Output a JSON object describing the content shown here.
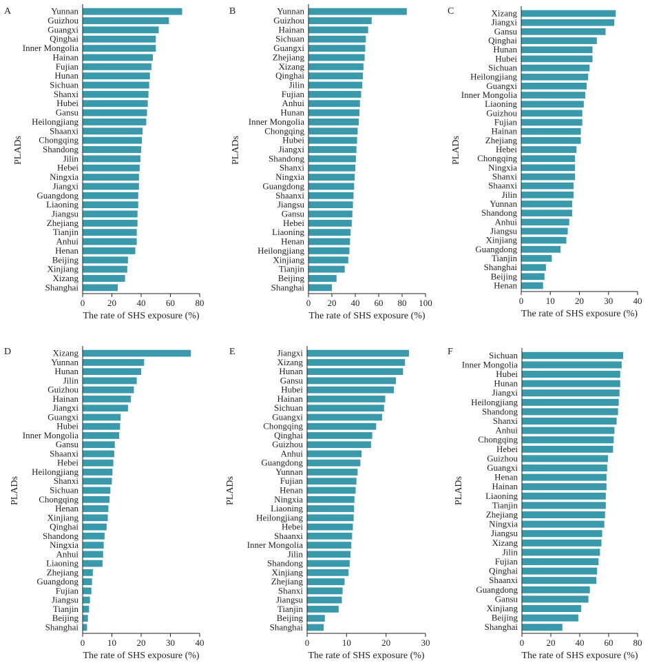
{
  "chart_data": [
    {
      "type": "bar",
      "orientation": "horizontal",
      "panel_label": "A",
      "xlabel": "The rate of SHS exposure (%)",
      "ylabel": "PLADs",
      "xlim": [
        0,
        80
      ],
      "xticks": [
        0,
        20,
        40,
        60,
        80
      ],
      "bar_color": "#3a9aab",
      "categories": [
        "Yunnan",
        "Guizhou",
        "Guangxi",
        "Qinghai",
        "Inner Mongolia",
        "Hainan",
        "Fujian",
        "Hunan",
        "Sichuan",
        "Shanxi",
        "Hubei",
        "Gansu",
        "Heilongjiang",
        "Shaanxi",
        "Chongqing",
        "Shandong",
        "Jilin",
        "Hebei",
        "Ningxia",
        "Jiangxi",
        "Guangdong",
        "Liaoning",
        "Jiangsu",
        "Zhejiang",
        "Tianjin",
        "Anhui",
        "Henan",
        "Beijing",
        "Xinjiang",
        "Xizang",
        "Shanghai"
      ],
      "values": [
        68,
        59,
        52,
        50,
        50,
        48,
        47,
        46,
        45.5,
        45,
        44.5,
        44,
        43.5,
        41,
        40.5,
        40,
        39.5,
        39,
        38.5,
        38.5,
        38,
        38,
        37.5,
        37.5,
        37,
        37,
        36,
        31,
        30.5,
        29,
        24
      ]
    },
    {
      "type": "bar",
      "orientation": "horizontal",
      "panel_label": "B",
      "xlabel": "The rate of SHS exposure (%)",
      "ylabel": "PLADs",
      "xlim": [
        0,
        100
      ],
      "xticks": [
        0,
        20,
        40,
        60,
        80,
        100
      ],
      "bar_color": "#3a9aab",
      "categories": [
        "Yunnan",
        "Guizhou",
        "Hainan",
        "Sichuan",
        "Guangxi",
        "Zhejiang",
        "Xizang",
        "Qinghai",
        "Jilin",
        "Fujian",
        "Anhui",
        "Hunan",
        "Inner Mongolia",
        "Chongqing",
        "Hubei",
        "Jiangxi",
        "Shandong",
        "Shanxi",
        "Ningxia",
        "Guangdong",
        "Shaanxi",
        "Jiangsu",
        "Gansu",
        "Hebei",
        "Liaoning",
        "Henan",
        "Heilongjiang",
        "Xinjiang",
        "Tianjin",
        "Beijing",
        "Shanghai"
      ],
      "values": [
        84,
        54,
        51,
        49,
        48.5,
        48,
        47,
        46.5,
        46,
        45,
        44,
        43.5,
        43,
        42,
        41.5,
        41,
        40.5,
        40,
        39.5,
        39,
        38.5,
        38,
        37.5,
        37,
        36,
        35.5,
        35,
        34,
        31,
        24,
        20
      ]
    },
    {
      "type": "bar",
      "orientation": "horizontal",
      "panel_label": "C",
      "xlabel": "The rate of SHS exposure (%)",
      "ylabel": "PLADs",
      "xlim": [
        0,
        40
      ],
      "xticks": [
        0,
        10,
        20,
        30,
        40
      ],
      "bar_color": "#3a9aab",
      "categories": [
        "Xizang",
        "Jiangxi",
        "Gansu",
        "Qinghai",
        "Hunan",
        "Hubei",
        "Sichuan",
        "Heilongjiang",
        "Guangxi",
        "Inner Mongolia",
        "Liaoning",
        "Guizhou",
        "Fujian",
        "Hainan",
        "Zhejiang",
        "Hebei",
        "Chongqing",
        "Ningxia",
        "Shanxi",
        "Shaanxi",
        "Jilin",
        "Yunnan",
        "Shandong",
        "Anhui",
        "Jiangsu",
        "Xinjiang",
        "Guangdong",
        "Tianjin",
        "Shanghai",
        "Beijing",
        "Henan"
      ],
      "values": [
        32.5,
        32,
        29,
        26,
        24.5,
        24.5,
        23.5,
        23,
        22.5,
        22,
        21.5,
        21,
        21,
        20.5,
        20.5,
        19,
        18.5,
        18.5,
        18.5,
        18,
        18,
        17.5,
        17.5,
        16.5,
        16,
        15.5,
        13.5,
        10.5,
        8.5,
        8,
        7.5
      ]
    },
    {
      "type": "bar",
      "orientation": "horizontal",
      "panel_label": "D",
      "xlabel": "The rate of SHS exposure (%)",
      "ylabel": "PLADs",
      "xlim": [
        0,
        40
      ],
      "xticks": [
        0,
        10,
        20,
        30,
        40
      ],
      "bar_color": "#3a9aab",
      "categories": [
        "Xizang",
        "Yunnan",
        "Hunan",
        "Jilin",
        "Guizhou",
        "Hainan",
        "Jiangxi",
        "Guangxi",
        "Hubei",
        "Inner Mongolia",
        "Gansu",
        "Shaanxi",
        "Hebei",
        "Heilongjiang",
        "Shanxi",
        "Sichuan",
        "Chongqing",
        "Henan",
        "Xinjiang",
        "Qinghai",
        "Shandong",
        "Ningxia",
        "Anhui",
        "Liaoning",
        "Zhejiang",
        "Guangdong",
        "Fujian",
        "Jiangsu",
        "Tianjin",
        "Beijing",
        "Shanghai"
      ],
      "values": [
        37,
        21,
        20,
        18.5,
        17.5,
        16.5,
        15.5,
        13,
        12.8,
        12.5,
        11,
        10.8,
        10.5,
        10.2,
        10,
        9.5,
        9.2,
        8.8,
        8.6,
        8.2,
        7.5,
        7.2,
        7,
        6.8,
        3.5,
        3.2,
        3,
        2.5,
        2.2,
        1.8,
        1.5
      ]
    },
    {
      "type": "bar",
      "orientation": "horizontal",
      "panel_label": "E",
      "xlabel": "The rate of SHS exposure (%)",
      "ylabel": "PLADs",
      "xlim": [
        0,
        30
      ],
      "xticks": [
        0,
        10,
        20,
        30
      ],
      "bar_color": "#3a9aab",
      "categories": [
        "Jiangxi",
        "Xizang",
        "Hunan",
        "Gansu",
        "Hubei",
        "Hainan",
        "Sichuan",
        "Guangxi",
        "Chongqing",
        "Qinghai",
        "Guizhou",
        "Anhui",
        "Guangdong",
        "Yunnan",
        "Fujian",
        "Henan",
        "Ningxia",
        "Liaoning",
        "Heilongjiang",
        "Hebei",
        "Shaanxi",
        "Inner Mongolia",
        "Jilin",
        "Shandong",
        "Xinjiang",
        "Zhejiang",
        "Shanxi",
        "Jiangsu",
        "Tianjin",
        "Beijing",
        "Shanghai"
      ],
      "values": [
        25.8,
        24.8,
        24.3,
        22.5,
        22,
        19.8,
        19.5,
        19,
        17.5,
        16.5,
        16.2,
        13.8,
        13.5,
        12.8,
        12.5,
        12.3,
        12,
        11.9,
        11.8,
        11.6,
        11.4,
        11.2,
        11,
        10.8,
        10.5,
        9.5,
        9,
        8.8,
        8,
        4.5,
        4.2
      ]
    },
    {
      "type": "bar",
      "orientation": "horizontal",
      "panel_label": "F",
      "xlabel": "The rate of SHS exposure (%)",
      "ylabel": "PLADs",
      "xlim": [
        0,
        80
      ],
      "xticks": [
        0,
        20,
        40,
        60,
        80
      ],
      "bar_color": "#3a9aab",
      "categories": [
        "Sichuan",
        "Inner Mongolia",
        "Hubei",
        "Hunan",
        "Jiangxi",
        "Heilongjiang",
        "Shandong",
        "Shanxi",
        "Anhui",
        "Chongqing",
        "Hebei",
        "Guizhou",
        "Guangxi",
        "Henan",
        "Hainan",
        "Liaoning",
        "Tianjin",
        "Zhejiang",
        "Ningxia",
        "Jiangsu",
        "Xizang",
        "Jilin",
        "Fujian",
        "Qinghai",
        "Shaanxi",
        "Guangdong",
        "Gansu",
        "Xinjiang",
        "Beijing",
        "Shanghai"
      ],
      "values": [
        70,
        69,
        68,
        68,
        67.5,
        67,
        66.5,
        65.5,
        64,
        63.5,
        63,
        59.5,
        59,
        58.5,
        58.5,
        58,
        58,
        57.5,
        57,
        55.5,
        55,
        54,
        53,
        52,
        51.5,
        47,
        46,
        41,
        39,
        28
      ]
    }
  ]
}
